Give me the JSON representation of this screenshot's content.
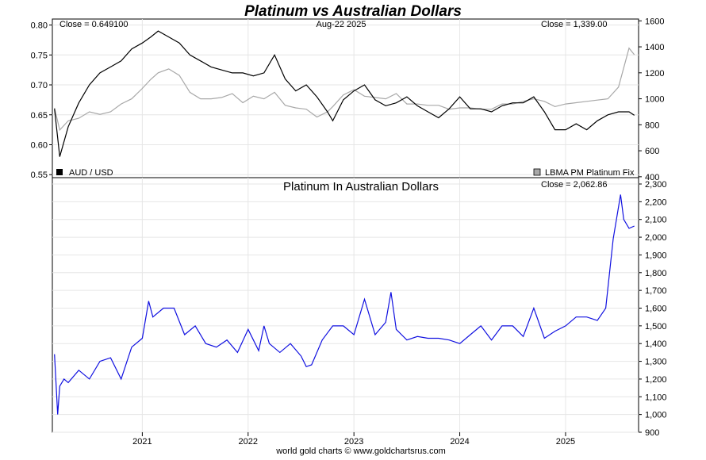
{
  "page": {
    "title": "Platinum vs Australian Dollars",
    "footer": "world gold charts © www.goldchartsrus.com"
  },
  "colors": {
    "title": "#1414e6",
    "aud": "#000000",
    "platinum": "#a8a8a8",
    "pt_aud": "#1010e0",
    "grid": "#e6e6e6",
    "frame": "#000000"
  },
  "chart_data": [
    {
      "type": "line",
      "close_left": "Close = 0.649100",
      "date_label": "Aug-22  2025",
      "close_right": "Close = 1,339.00",
      "left_axis": {
        "ticks": [
          "0.80",
          "0.75",
          "0.70",
          "0.65",
          "0.60",
          "0.55"
        ],
        "range": [
          0.545,
          0.81
        ]
      },
      "right_axis": {
        "ticks": [
          "1600",
          "1400",
          "1200",
          "1000",
          "800",
          "600",
          "400"
        ],
        "range": [
          393,
          1614
        ]
      },
      "series": [
        {
          "name": "AUD / USD",
          "axis": "left",
          "color": "#000000",
          "x": [
            2020.17,
            2020.22,
            2020.3,
            2020.4,
            2020.5,
            2020.6,
            2020.7,
            2020.8,
            2020.9,
            2021.0,
            2021.08,
            2021.15,
            2021.25,
            2021.35,
            2021.45,
            2021.55,
            2021.65,
            2021.75,
            2021.85,
            2021.95,
            2022.05,
            2022.15,
            2022.25,
            2022.35,
            2022.45,
            2022.55,
            2022.65,
            2022.75,
            2022.8,
            2022.9,
            2023.0,
            2023.1,
            2023.2,
            2023.3,
            2023.4,
            2023.5,
            2023.6,
            2023.7,
            2023.8,
            2023.9,
            2024.0,
            2024.1,
            2024.2,
            2024.3,
            2024.4,
            2024.5,
            2024.6,
            2024.7,
            2024.8,
            2024.9,
            2025.0,
            2025.1,
            2025.2,
            2025.3,
            2025.4,
            2025.5,
            2025.6,
            2025.65
          ],
          "values": [
            0.66,
            0.58,
            0.63,
            0.67,
            0.7,
            0.72,
            0.73,
            0.74,
            0.76,
            0.77,
            0.78,
            0.79,
            0.78,
            0.77,
            0.75,
            0.74,
            0.73,
            0.725,
            0.72,
            0.72,
            0.715,
            0.72,
            0.75,
            0.71,
            0.69,
            0.7,
            0.68,
            0.655,
            0.64,
            0.675,
            0.69,
            0.7,
            0.675,
            0.665,
            0.67,
            0.68,
            0.665,
            0.655,
            0.645,
            0.66,
            0.68,
            0.66,
            0.66,
            0.655,
            0.665,
            0.67,
            0.67,
            0.68,
            0.655,
            0.625,
            0.625,
            0.635,
            0.625,
            0.64,
            0.65,
            0.655,
            0.655,
            0.6491
          ]
        },
        {
          "name": "LBMA PM Platinum Fix",
          "axis": "right",
          "color": "#a8a8a8",
          "x": [
            2020.17,
            2020.22,
            2020.3,
            2020.4,
            2020.5,
            2020.6,
            2020.7,
            2020.8,
            2020.9,
            2021.0,
            2021.08,
            2021.15,
            2021.25,
            2021.35,
            2021.45,
            2021.55,
            2021.65,
            2021.75,
            2021.85,
            2021.95,
            2022.05,
            2022.15,
            2022.25,
            2022.35,
            2022.45,
            2022.55,
            2022.65,
            2022.75,
            2022.8,
            2022.9,
            2023.0,
            2023.1,
            2023.2,
            2023.3,
            2023.4,
            2023.5,
            2023.6,
            2023.7,
            2023.8,
            2023.9,
            2024.0,
            2024.1,
            2024.2,
            2024.3,
            2024.4,
            2024.5,
            2024.6,
            2024.7,
            2024.8,
            2024.9,
            2025.0,
            2025.1,
            2025.2,
            2025.3,
            2025.4,
            2025.5,
            2025.6,
            2025.65
          ],
          "values": [
            930,
            760,
            830,
            850,
            900,
            880,
            900,
            960,
            1000,
            1080,
            1150,
            1200,
            1230,
            1180,
            1050,
            1000,
            1000,
            1010,
            1040,
            970,
            1020,
            1000,
            1050,
            950,
            930,
            920,
            860,
            900,
            940,
            1030,
            1070,
            1020,
            1010,
            1000,
            1040,
            960,
            960,
            950,
            950,
            920,
            930,
            930,
            920,
            920,
            960,
            960,
            980,
            1000,
            980,
            940,
            960,
            970,
            980,
            990,
            1000,
            1090,
            1390,
            1339
          ]
        },
        {
          "name": "",
          "axis": "none",
          "color": "#000000",
          "x": [],
          "values": []
        }
      ],
      "legend": [
        {
          "label": "AUD / USD",
          "color": "#000000",
          "position": "bottom-left"
        },
        {
          "label": "LBMA PM Platinum Fix",
          "color": "#a8a8a8",
          "position": "bottom-right"
        }
      ],
      "grid": true
    },
    {
      "type": "line",
      "title": "Platinum In Australian Dollars",
      "close_right": "Close = 2,062.86",
      "right_axis": {
        "ticks": [
          "2,300",
          "2,200",
          "2,100",
          "2,000",
          "1,900",
          "1,800",
          "1,700",
          "1,600",
          "1,500",
          "1,400",
          "1,300",
          "1,200",
          "1,100",
          "1,000",
          "900"
        ],
        "range": [
          900,
          2300
        ]
      },
      "x_ticks": [
        "2021",
        "2022",
        "2023",
        "2024",
        "2025"
      ],
      "x_tick_values": [
        2021,
        2022,
        2023,
        2024,
        2025
      ],
      "x_range": [
        2020.15,
        2025.69
      ],
      "series": [
        {
          "name": "",
          "color": "#1010e0",
          "x": [
            2020.17,
            2020.2,
            2020.22,
            2020.26,
            2020.3,
            2020.4,
            2020.5,
            2020.6,
            2020.7,
            2020.8,
            2020.9,
            2021.0,
            2021.06,
            2021.1,
            2021.2,
            2021.3,
            2021.4,
            2021.5,
            2021.6,
            2021.7,
            2021.8,
            2021.9,
            2022.0,
            2022.1,
            2022.15,
            2022.2,
            2022.3,
            2022.4,
            2022.5,
            2022.55,
            2022.6,
            2022.7,
            2022.75,
            2022.8,
            2022.9,
            2023.0,
            2023.1,
            2023.2,
            2023.3,
            2023.35,
            2023.4,
            2023.5,
            2023.6,
            2023.7,
            2023.8,
            2023.9,
            2024.0,
            2024.1,
            2024.2,
            2024.3,
            2024.4,
            2024.5,
            2024.6,
            2024.7,
            2024.8,
            2024.9,
            2025.0,
            2025.1,
            2025.2,
            2025.3,
            2025.38,
            2025.45,
            2025.52,
            2025.55,
            2025.6,
            2025.65
          ],
          "values": [
            1340,
            1000,
            1160,
            1200,
            1180,
            1250,
            1200,
            1300,
            1320,
            1200,
            1380,
            1430,
            1640,
            1550,
            1600,
            1600,
            1450,
            1500,
            1400,
            1380,
            1420,
            1350,
            1480,
            1360,
            1500,
            1400,
            1350,
            1400,
            1330,
            1270,
            1280,
            1420,
            1460,
            1500,
            1500,
            1450,
            1650,
            1450,
            1520,
            1690,
            1480,
            1420,
            1440,
            1430,
            1430,
            1420,
            1400,
            1450,
            1500,
            1420,
            1500,
            1500,
            1440,
            1600,
            1430,
            1470,
            1500,
            1550,
            1550,
            1530,
            1600,
            1990,
            2240,
            2100,
            2050,
            2062.86
          ]
        }
      ],
      "grid": true
    }
  ]
}
